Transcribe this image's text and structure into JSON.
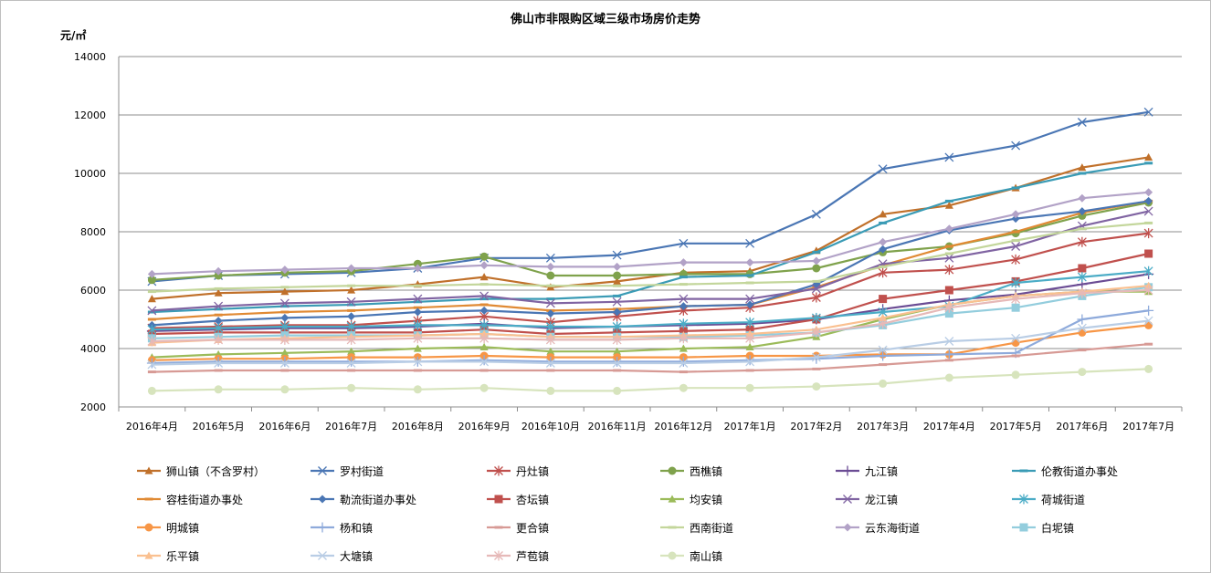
{
  "chart_data": {
    "type": "line",
    "title": "佛山市非限购区域三级市场房价走势",
    "ylabel": "元/㎡",
    "xlabel": "",
    "ylim": [
      2000,
      14000
    ],
    "yticks": [
      2000,
      4000,
      6000,
      8000,
      10000,
      12000,
      14000
    ],
    "grid": true,
    "legend_position": "bottom",
    "categories": [
      "2016年4月",
      "2016年5月",
      "2016年6月",
      "2016年7月",
      "2016年8月",
      "2016年9月",
      "2016年10月",
      "2016年11月",
      "2016年12月",
      "2017年1月",
      "2017年2月",
      "2017年3月",
      "2017年4月",
      "2017年5月",
      "2017年6月",
      "2017年7月"
    ],
    "series": [
      {
        "name": "狮山镇（不含罗村）",
        "color": "#c0702a",
        "marker": "triangle",
        "values": [
          5700,
          5900,
          5950,
          6000,
          6200,
          6450,
          6100,
          6300,
          6600,
          6650,
          7350,
          8600,
          8900,
          9500,
          10200,
          10550
        ]
      },
      {
        "name": "罗村街道",
        "color": "#4a76b4",
        "marker": "x",
        "values": [
          6300,
          6500,
          6550,
          6600,
          6750,
          7100,
          7100,
          7200,
          7600,
          7600,
          8600,
          10150,
          10550,
          10950,
          11750,
          12100
        ]
      },
      {
        "name": "丹灶镇",
        "color": "#c0504d",
        "marker": "star",
        "values": [
          4700,
          4750,
          4800,
          4800,
          4950,
          5100,
          4900,
          5100,
          5300,
          5400,
          5750,
          6600,
          6700,
          7050,
          7650,
          7950
        ]
      },
      {
        "name": "西樵镇",
        "color": "#7fa24c",
        "marker": "circle",
        "values": [
          6350,
          6500,
          6600,
          6650,
          6900,
          7150,
          6500,
          6500,
          6550,
          6550,
          6750,
          7300,
          7500,
          7950,
          8550,
          9000
        ]
      },
      {
        "name": "九江镇",
        "color": "#6b4c94",
        "marker": "plus",
        "values": [
          4600,
          4650,
          4700,
          4700,
          4750,
          4850,
          4700,
          4750,
          4800,
          4850,
          5000,
          5350,
          5650,
          5850,
          6200,
          6550
        ]
      },
      {
        "name": "伦教街道办事处",
        "color": "#3a9bb5",
        "marker": "dash",
        "values": [
          5250,
          5350,
          5450,
          5500,
          5600,
          5700,
          5700,
          5800,
          6450,
          6500,
          7300,
          8300,
          9050,
          9500,
          10000,
          10350
        ]
      },
      {
        "name": "容桂街道办事处",
        "color": "#e08a34",
        "marker": "dash",
        "values": [
          5000,
          5150,
          5250,
          5300,
          5400,
          5500,
          5300,
          5350,
          5450,
          5500,
          6100,
          6850,
          7500,
          8000,
          8650,
          9050
        ]
      },
      {
        "name": "勒流街道办事处",
        "color": "#4a76b4",
        "marker": "diamond",
        "values": [
          4800,
          4950,
          5050,
          5100,
          5250,
          5300,
          5200,
          5250,
          5450,
          5500,
          6200,
          7400,
          8050,
          8450,
          8700,
          9050
        ]
      },
      {
        "name": "杏坛镇",
        "color": "#c0504d",
        "marker": "square",
        "values": [
          4500,
          4550,
          4550,
          4550,
          4550,
          4650,
          4500,
          4550,
          4600,
          4650,
          5000,
          5700,
          6000,
          6300,
          6750,
          7250
        ]
      },
      {
        "name": "均安镇",
        "color": "#9bbb59",
        "marker": "triangle",
        "values": [
          3700,
          3800,
          3850,
          3900,
          4000,
          4050,
          3900,
          3900,
          4000,
          4050,
          4400,
          5000,
          5500,
          5800,
          5950,
          5950
        ]
      },
      {
        "name": "龙江镇",
        "color": "#8064a2",
        "marker": "x",
        "values": [
          5300,
          5450,
          5550,
          5600,
          5700,
          5800,
          5550,
          5600,
          5700,
          5700,
          6050,
          6900,
          7100,
          7500,
          8200,
          8700
        ]
      },
      {
        "name": "荷城街道",
        "color": "#4bacc6",
        "marker": "star",
        "values": [
          4650,
          4700,
          4750,
          4750,
          4800,
          4800,
          4750,
          4750,
          4850,
          4900,
          5050,
          5250,
          5450,
          6250,
          6450,
          6650
        ]
      },
      {
        "name": "明城镇",
        "color": "#f79646",
        "marker": "circle",
        "values": [
          3600,
          3650,
          3650,
          3700,
          3700,
          3750,
          3700,
          3700,
          3700,
          3750,
          3750,
          3800,
          3800,
          4200,
          4550,
          4800
        ]
      },
      {
        "name": "杨和镇",
        "color": "#8eaadb",
        "marker": "plus",
        "values": [
          3500,
          3550,
          3550,
          3550,
          3550,
          3600,
          3550,
          3550,
          3550,
          3600,
          3650,
          3750,
          3800,
          3850,
          5000,
          5300
        ]
      },
      {
        "name": "更合镇",
        "color": "#d79a95",
        "marker": "dash",
        "values": [
          3200,
          3250,
          3250,
          3250,
          3250,
          3250,
          3250,
          3250,
          3200,
          3250,
          3300,
          3450,
          3600,
          3750,
          3950,
          4150
        ]
      },
      {
        "name": "西南街道",
        "color": "#c3d69b",
        "marker": "dash",
        "values": [
          5950,
          6050,
          6100,
          6150,
          6150,
          6200,
          6150,
          6150,
          6200,
          6250,
          6300,
          6800,
          7250,
          7700,
          8100,
          8300
        ]
      },
      {
        "name": "云东海街道",
        "color": "#b2a2c7",
        "marker": "diamond",
        "values": [
          6550,
          6650,
          6700,
          6750,
          6750,
          6850,
          6800,
          6800,
          6950,
          6950,
          7000,
          7650,
          8100,
          8600,
          9150,
          9350
        ]
      },
      {
        "name": "白坭镇",
        "color": "#93cddd",
        "marker": "square",
        "values": [
          4350,
          4400,
          4450,
          4450,
          4450,
          4500,
          4400,
          4400,
          4400,
          4450,
          4550,
          4800,
          5200,
          5400,
          5800,
          6100
        ]
      },
      {
        "name": "乐平镇",
        "color": "#fac090",
        "marker": "triangle",
        "values": [
          4200,
          4300,
          4350,
          4400,
          4450,
          4500,
          4400,
          4400,
          4450,
          4500,
          4650,
          5050,
          5500,
          5800,
          5950,
          6150
        ]
      },
      {
        "name": "大塘镇",
        "color": "#b9cde5",
        "marker": "x",
        "values": [
          3450,
          3500,
          3500,
          3500,
          3550,
          3550,
          3500,
          3500,
          3500,
          3550,
          3700,
          3950,
          4250,
          4350,
          4700,
          4950
        ]
      },
      {
        "name": "芦苞镇",
        "color": "#e6b9b8",
        "marker": "star",
        "values": [
          4250,
          4300,
          4300,
          4300,
          4350,
          4350,
          4300,
          4300,
          4350,
          4350,
          4550,
          4850,
          5400,
          5700,
          5900,
          6000
        ]
      },
      {
        "name": "南山镇",
        "color": "#d7e4bd",
        "marker": "circle",
        "values": [
          2550,
          2600,
          2600,
          2650,
          2600,
          2650,
          2550,
          2550,
          2650,
          2650,
          2700,
          2800,
          3000,
          3100,
          3200,
          3300
        ]
      }
    ]
  }
}
